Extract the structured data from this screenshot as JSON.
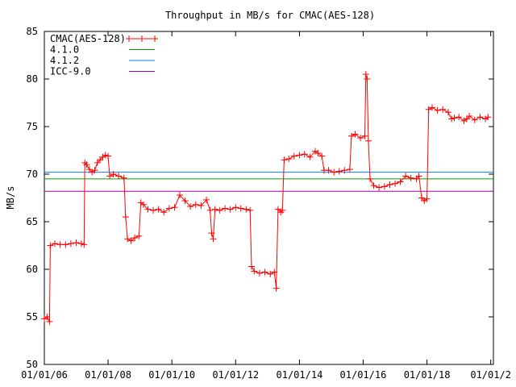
{
  "chart_data": {
    "type": "line",
    "title": "Throughput in MB/s for CMAC(AES-128)",
    "xlabel": "",
    "ylabel": "MB/s",
    "xlim": [
      "2006-01-01",
      "2020-02-01"
    ],
    "ylim": [
      50,
      85
    ],
    "yticks": [
      50,
      55,
      60,
      65,
      70,
      75,
      80,
      85
    ],
    "xticks": [
      "2006-01-01",
      "2008-01-01",
      "2010-01-01",
      "2012-01-01",
      "2014-01-01",
      "2016-01-01",
      "2018-01-01",
      "2020-01-01"
    ],
    "xtick_labels": [
      "01/01/06",
      "01/01/08",
      "01/01/10",
      "01/01/12",
      "01/01/14",
      "01/01/16",
      "01/01/18",
      "01/01/2"
    ],
    "grid": false,
    "legend_position": "top-left",
    "series": [
      {
        "name": "CMAC(AES-128)",
        "color": "#ff0000",
        "marker": "plus",
        "points": [
          [
            "2006-01-01",
            54.8
          ],
          [
            "2006-02-01",
            55.0
          ],
          [
            "2006-03-01",
            54.5
          ],
          [
            "2006-03-10",
            62.5
          ],
          [
            "2006-05-01",
            62.7
          ],
          [
            "2006-07-01",
            62.6
          ],
          [
            "2006-09-01",
            62.6
          ],
          [
            "2006-11-01",
            62.7
          ],
          [
            "2007-01-01",
            62.8
          ],
          [
            "2007-03-01",
            62.7
          ],
          [
            "2007-04-01",
            62.6
          ],
          [
            "2007-04-10",
            71.2
          ],
          [
            "2007-05-01",
            71.0
          ],
          [
            "2007-06-01",
            70.5
          ],
          [
            "2007-07-01",
            70.2
          ],
          [
            "2007-08-01",
            70.4
          ],
          [
            "2007-09-01",
            71.2
          ],
          [
            "2007-10-01",
            71.5
          ],
          [
            "2007-11-01",
            71.8
          ],
          [
            "2007-12-01",
            72.0
          ],
          [
            "2008-01-01",
            71.9
          ],
          [
            "2008-01-20",
            69.8
          ],
          [
            "2008-03-01",
            70.0
          ],
          [
            "2008-05-01",
            69.8
          ],
          [
            "2008-07-01",
            69.6
          ],
          [
            "2008-07-20",
            65.5
          ],
          [
            "2008-08-10",
            63.2
          ],
          [
            "2008-09-20",
            63.0
          ],
          [
            "2008-11-01",
            63.3
          ],
          [
            "2008-12-20",
            63.5
          ],
          [
            "2009-01-10",
            67.0
          ],
          [
            "2009-02-10",
            66.8
          ],
          [
            "2009-04-01",
            66.3
          ],
          [
            "2009-06-01",
            66.2
          ],
          [
            "2009-08-01",
            66.3
          ],
          [
            "2009-10-01",
            66.0
          ],
          [
            "2009-12-01",
            66.4
          ],
          [
            "2010-02-01",
            66.5
          ],
          [
            "2010-04-01",
            67.8
          ],
          [
            "2010-06-01",
            67.2
          ],
          [
            "2010-08-01",
            66.6
          ],
          [
            "2010-10-01",
            66.8
          ],
          [
            "2010-12-01",
            66.7
          ],
          [
            "2011-02-01",
            67.3
          ],
          [
            "2011-03-15",
            66.2
          ],
          [
            "2011-04-01",
            63.8
          ],
          [
            "2011-04-20",
            63.2
          ],
          [
            "2011-05-10",
            66.3
          ],
          [
            "2011-07-01",
            66.2
          ],
          [
            "2011-09-01",
            66.4
          ],
          [
            "2011-11-01",
            66.3
          ],
          [
            "2012-01-01",
            66.5
          ],
          [
            "2012-03-01",
            66.4
          ],
          [
            "2012-05-01",
            66.3
          ],
          [
            "2012-06-15",
            66.2
          ],
          [
            "2012-07-01",
            60.3
          ],
          [
            "2012-08-01",
            59.8
          ],
          [
            "2012-10-01",
            59.6
          ],
          [
            "2012-12-01",
            59.7
          ],
          [
            "2013-02-01",
            59.5
          ],
          [
            "2013-03-20",
            59.7
          ],
          [
            "2013-04-10",
            58.0
          ],
          [
            "2013-05-01",
            66.3
          ],
          [
            "2013-06-01",
            66.0
          ],
          [
            "2013-06-20",
            66.2
          ],
          [
            "2013-07-10",
            71.5
          ],
          [
            "2013-09-01",
            71.6
          ],
          [
            "2013-11-01",
            71.9
          ],
          [
            "2014-01-01",
            72.0
          ],
          [
            "2014-03-01",
            72.1
          ],
          [
            "2014-05-01",
            71.8
          ],
          [
            "2014-07-01",
            72.4
          ],
          [
            "2014-08-01",
            72.2
          ],
          [
            "2014-09-15",
            71.9
          ],
          [
            "2014-10-10",
            70.4
          ],
          [
            "2014-12-01",
            70.4
          ],
          [
            "2015-02-01",
            70.2
          ],
          [
            "2015-04-01",
            70.3
          ],
          [
            "2015-06-01",
            70.4
          ],
          [
            "2015-08-01",
            70.5
          ],
          [
            "2015-08-20",
            74.0
          ],
          [
            "2015-10-01",
            74.2
          ],
          [
            "2015-12-01",
            73.8
          ],
          [
            "2016-01-20",
            74.0
          ],
          [
            "2016-02-01",
            80.5
          ],
          [
            "2016-02-15",
            80.0
          ],
          [
            "2016-03-01",
            73.5
          ],
          [
            "2016-03-20",
            69.5
          ],
          [
            "2016-05-01",
            68.8
          ],
          [
            "2016-07-01",
            68.6
          ],
          [
            "2016-09-01",
            68.7
          ],
          [
            "2016-11-01",
            68.9
          ],
          [
            "2017-01-01",
            69.0
          ],
          [
            "2017-03-01",
            69.2
          ],
          [
            "2017-05-01",
            69.8
          ],
          [
            "2017-07-01",
            69.6
          ],
          [
            "2017-09-01",
            69.5
          ],
          [
            "2017-10-01",
            69.8
          ],
          [
            "2017-11-01",
            67.5
          ],
          [
            "2017-12-01",
            67.2
          ],
          [
            "2018-01-01",
            67.4
          ],
          [
            "2018-01-20",
            76.8
          ],
          [
            "2018-03-01",
            77.0
          ],
          [
            "2018-05-01",
            76.7
          ],
          [
            "2018-07-01",
            76.8
          ],
          [
            "2018-09-01",
            76.5
          ],
          [
            "2018-10-10",
            75.8
          ],
          [
            "2018-11-10",
            75.9
          ],
          [
            "2019-01-01",
            76.0
          ],
          [
            "2019-03-01",
            75.6
          ],
          [
            "2019-04-01",
            75.8
          ],
          [
            "2019-05-01",
            76.1
          ],
          [
            "2019-07-01",
            75.7
          ],
          [
            "2019-09-01",
            76.0
          ],
          [
            "2019-11-01",
            75.8
          ],
          [
            "2019-12-01",
            76.0
          ]
        ]
      },
      {
        "name": "4.1.0",
        "color": "#00a000",
        "value": 69.5
      },
      {
        "name": "4.1.2",
        "color": "#0080ff",
        "value": 70.2
      },
      {
        "name": "ICC-9.0",
        "color": "#a000a0",
        "value": 68.2
      }
    ]
  }
}
